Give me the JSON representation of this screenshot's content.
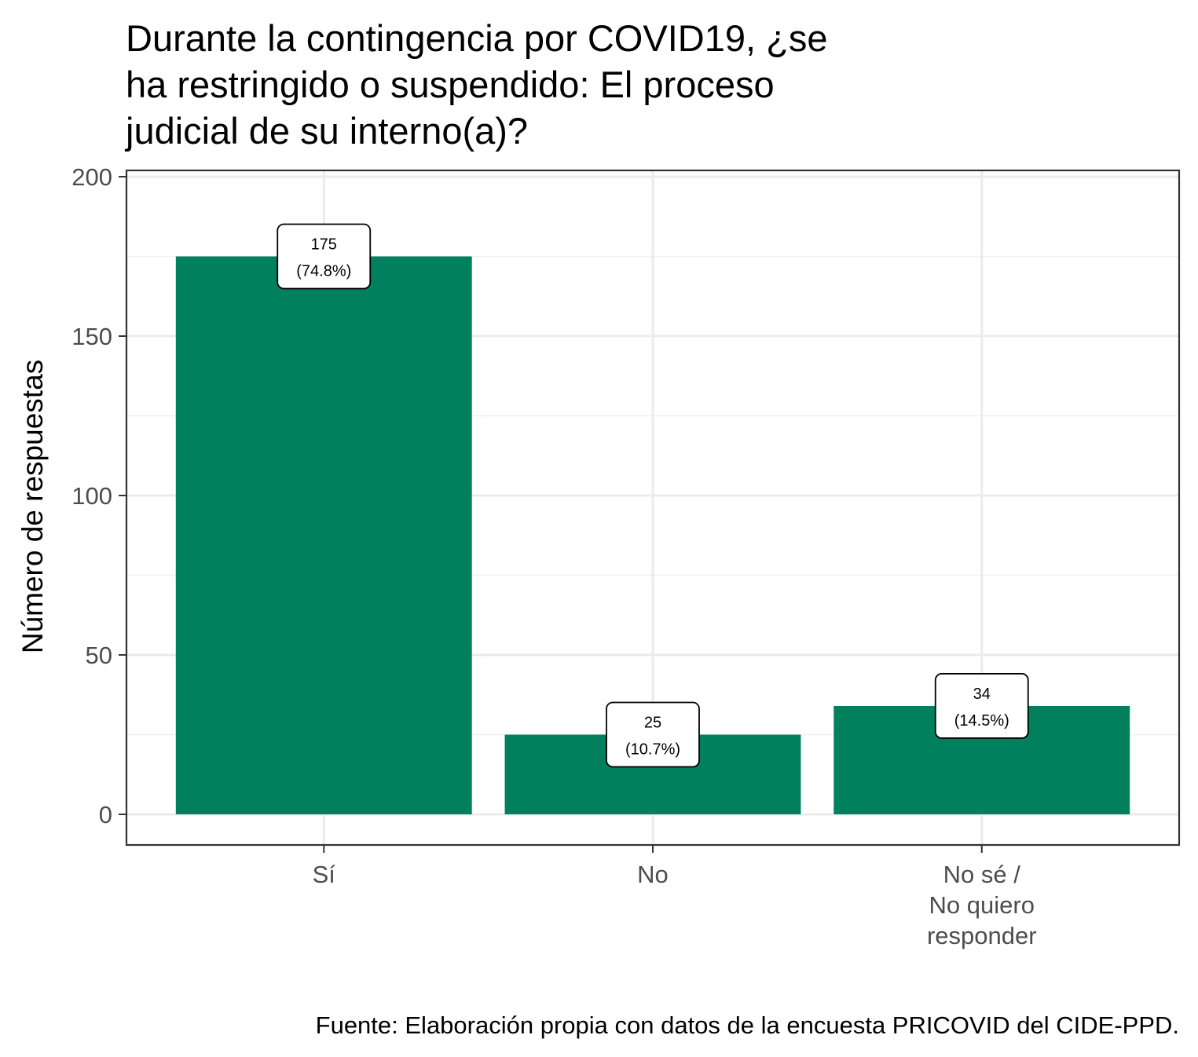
{
  "chart_data": {
    "type": "bar",
    "title_lines": [
      "Durante la contingencia por COVID19, ¿se",
      "ha restringido o suspendido: El proceso",
      "judicial de su interno(a)?"
    ],
    "categories": [
      [
        "Sí"
      ],
      [
        "No"
      ],
      [
        "No sé /",
        "No quiero",
        "responder"
      ]
    ],
    "values": [
      175,
      25,
      34
    ],
    "labels": [
      [
        "175",
        "(74.8%)"
      ],
      [
        "25",
        "(10.7%)"
      ],
      [
        "34",
        "(14.5%)"
      ]
    ],
    "ylabel": "Número de respuestas",
    "xlabel": "",
    "ylim": [
      -9.5,
      200
    ],
    "yticks": [
      0,
      50,
      100,
      150,
      200
    ],
    "ytick_labels": [
      "0",
      "50",
      "100",
      "150",
      "200"
    ],
    "grid": true,
    "bar_color": "#00805C",
    "caption": "Fuente: Elaboración propia con datos de la encuesta PRICOVID del CIDE-PPD."
  }
}
